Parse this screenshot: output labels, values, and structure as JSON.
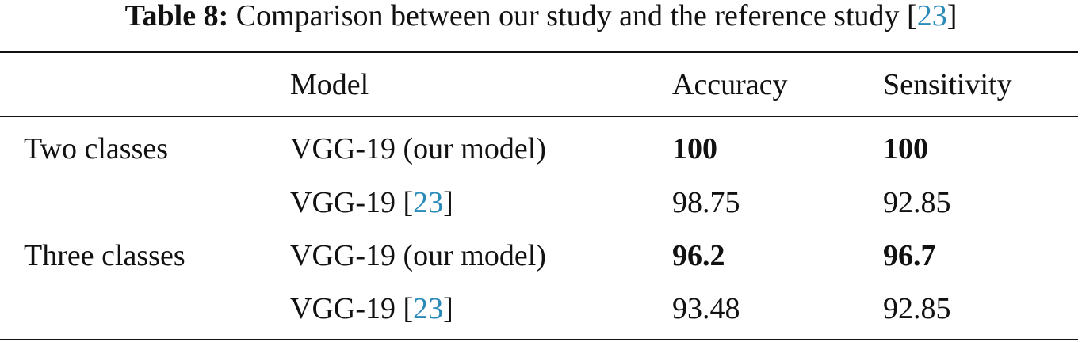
{
  "caption": {
    "label": "Table 8:",
    "text": [
      {
        "text": "Comparison between our study and the reference study ["
      },
      {
        "text": "23",
        "ref": true
      },
      {
        "text": "]"
      }
    ]
  },
  "table": {
    "header": [
      "Model",
      "Accuracy",
      "Sensitivity"
    ],
    "groups": [
      {
        "name": "Two classes",
        "rows": [
          {
            "model": [
              {
                "text": "VGG-19 (our model)"
              }
            ],
            "cells": [
              {
                "text": "100",
                "bold": true
              },
              {
                "text": "100",
                "bold": true
              }
            ]
          },
          {
            "model": [
              {
                "text": "VGG-19 ["
              },
              {
                "text": "23",
                "ref": true
              },
              {
                "text": "]"
              }
            ],
            "cells": [
              {
                "text": "98.75"
              },
              {
                "text": "92.85"
              }
            ]
          }
        ]
      },
      {
        "name": "Three classes",
        "rows": [
          {
            "model": [
              {
                "text": "VGG-19 (our model)"
              }
            ],
            "cells": [
              {
                "text": "96.2",
                "bold": true
              },
              {
                "text": "96.7",
                "bold": true
              }
            ]
          },
          {
            "model": [
              {
                "text": "VGG-19 ["
              },
              {
                "text": "23",
                "ref": true
              },
              {
                "text": "]"
              }
            ],
            "cells": [
              {
                "text": "93.48"
              },
              {
                "text": "92.85"
              }
            ]
          }
        ]
      }
    ]
  }
}
